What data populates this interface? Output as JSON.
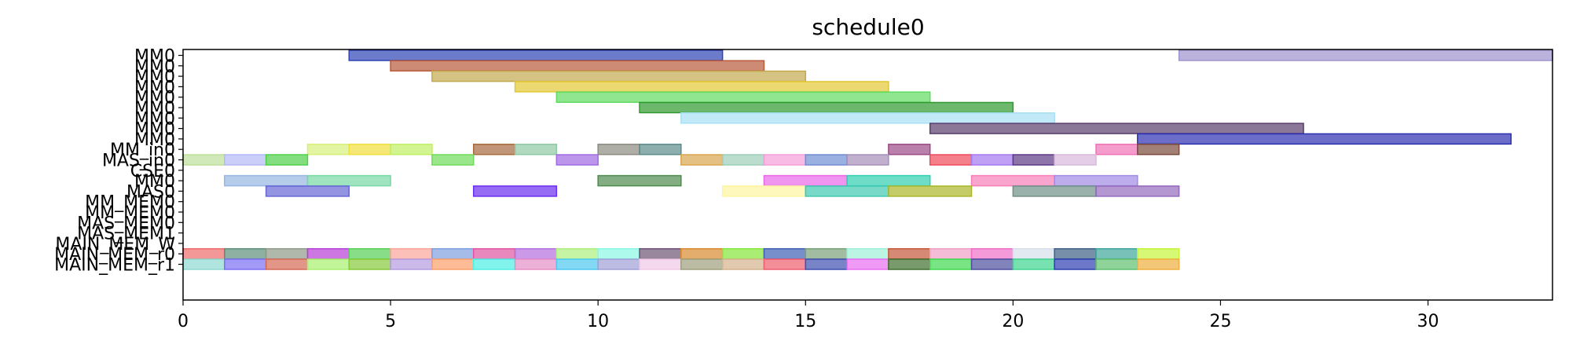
{
  "chart_data": {
    "type": "gantt",
    "title": "schedule0",
    "xlim": [
      0,
      33
    ],
    "xticks": [
      "0",
      "5",
      "10",
      "15",
      "20",
      "25",
      "30"
    ],
    "rows": [
      "MM0",
      "MM0",
      "MM0",
      "MM0",
      "MM0",
      "MM0",
      "MM0",
      "MM0",
      "MM0",
      "MM_in0",
      "MAS_in0",
      "CSE0",
      "MM0",
      "MAS0",
      "MM_MEM0",
      "MM_MEM0",
      "MAS_MEM0",
      "MAS_MEM1",
      "MAIN_MEM_W",
      "MAIN_MEM_r0",
      "MAIN_MEM_r1"
    ],
    "bars": [
      {
        "row": 0,
        "start": 4,
        "end": 13,
        "color": "#2f43b5"
      },
      {
        "row": 0,
        "start": 24,
        "end": 33,
        "color": "#9f93cf"
      },
      {
        "row": 1,
        "start": 5,
        "end": 14,
        "color": "#b85a3a"
      },
      {
        "row": 2,
        "start": 6,
        "end": 15,
        "color": "#c2a94f"
      },
      {
        "row": 3,
        "start": 8,
        "end": 17,
        "color": "#e3c733"
      },
      {
        "row": 4,
        "start": 9,
        "end": 18,
        "color": "#5fdb5f"
      },
      {
        "row": 5,
        "start": 11,
        "end": 20,
        "color": "#2f9a2f"
      },
      {
        "row": 6,
        "start": 12,
        "end": 21,
        "color": "#a7dff5"
      },
      {
        "row": 7,
        "start": 18,
        "end": 27,
        "color": "#5a3f6e"
      },
      {
        "row": 8,
        "start": 23,
        "end": 32,
        "color": "#2c2fb0"
      },
      {
        "row": 9,
        "start": 3,
        "end": 4,
        "color": "#d7f07a"
      },
      {
        "row": 9,
        "start": 4,
        "end": 5,
        "color": "#f2de3c"
      },
      {
        "row": 9,
        "start": 5,
        "end": 6,
        "color": "#bff063"
      },
      {
        "row": 9,
        "start": 7,
        "end": 8,
        "color": "#a76a3f"
      },
      {
        "row": 9,
        "start": 8,
        "end": 9,
        "color": "#8fc9a4"
      },
      {
        "row": 9,
        "start": 10,
        "end": 11,
        "color": "#8b8b82"
      },
      {
        "row": 9,
        "start": 11,
        "end": 12,
        "color": "#5b8b8a"
      },
      {
        "row": 9,
        "start": 17,
        "end": 18,
        "color": "#9b4a88"
      },
      {
        "row": 9,
        "start": 22,
        "end": 23,
        "color": "#ef72b5"
      },
      {
        "row": 9,
        "start": 23,
        "end": 24,
        "color": "#7a4a3a"
      },
      {
        "row": 10,
        "start": 0,
        "end": 1,
        "color": "#bde09a"
      },
      {
        "row": 10,
        "start": 1,
        "end": 2,
        "color": "#b4b9f6"
      },
      {
        "row": 10,
        "start": 2,
        "end": 3,
        "color": "#4fd04a"
      },
      {
        "row": 10,
        "start": 6,
        "end": 7,
        "color": "#6fdc5a"
      },
      {
        "row": 10,
        "start": 9,
        "end": 10,
        "color": "#a06ae2"
      },
      {
        "row": 10,
        "start": 12,
        "end": 13,
        "color": "#d9a64d"
      },
      {
        "row": 10,
        "start": 13,
        "end": 14,
        "color": "#9ccfb8"
      },
      {
        "row": 10,
        "start": 14,
        "end": 15,
        "color": "#f59fd9"
      },
      {
        "row": 10,
        "start": 15,
        "end": 16,
        "color": "#6f8ed4"
      },
      {
        "row": 10,
        "start": 16,
        "end": 17,
        "color": "#a68fb8"
      },
      {
        "row": 10,
        "start": 18,
        "end": 19,
        "color": "#ef4a5a"
      },
      {
        "row": 10,
        "start": 19,
        "end": 20,
        "color": "#a478f0"
      },
      {
        "row": 10,
        "start": 20,
        "end": 21,
        "color": "#5e3a85"
      },
      {
        "row": 10,
        "start": 21,
        "end": 22,
        "color": "#d9b8dc"
      },
      {
        "row": 12,
        "start": 1,
        "end": 3,
        "color": "#97b6e3"
      },
      {
        "row": 12,
        "start": 3,
        "end": 5,
        "color": "#77d9a4"
      },
      {
        "row": 12,
        "start": 10,
        "end": 12,
        "color": "#4f8a4f"
      },
      {
        "row": 12,
        "start": 14,
        "end": 16,
        "color": "#e867e8"
      },
      {
        "row": 12,
        "start": 16,
        "end": 18,
        "color": "#2fcfb0"
      },
      {
        "row": 12,
        "start": 19,
        "end": 21,
        "color": "#f77fb8"
      },
      {
        "row": 12,
        "start": 21,
        "end": 23,
        "color": "#a18ae6"
      },
      {
        "row": 13,
        "start": 2,
        "end": 4,
        "color": "#6767d6"
      },
      {
        "row": 13,
        "start": 7,
        "end": 9,
        "color": "#6a2ef0"
      },
      {
        "row": 13,
        "start": 13,
        "end": 15,
        "color": "#fff5a0"
      },
      {
        "row": 13,
        "start": 15,
        "end": 17,
        "color": "#3fc9b0"
      },
      {
        "row": 13,
        "start": 17,
        "end": 19,
        "color": "#a9b72a"
      },
      {
        "row": 13,
        "start": 20,
        "end": 22,
        "color": "#6f8f87"
      },
      {
        "row": 13,
        "start": 22,
        "end": 24,
        "color": "#9469be"
      },
      {
        "row": 19,
        "start": 0,
        "end": 1,
        "color": "#ef6b6b"
      },
      {
        "row": 19,
        "start": 1,
        "end": 2,
        "color": "#5d8f7a"
      },
      {
        "row": 19,
        "start": 2,
        "end": 3,
        "color": "#8f9a88"
      },
      {
        "row": 19,
        "start": 3,
        "end": 4,
        "color": "#b83fd6"
      },
      {
        "row": 19,
        "start": 4,
        "end": 5,
        "color": "#56d056"
      },
      {
        "row": 19,
        "start": 5,
        "end": 6,
        "color": "#fca59a"
      },
      {
        "row": 19,
        "start": 6,
        "end": 7,
        "color": "#7fa0e0"
      },
      {
        "row": 19,
        "start": 7,
        "end": 8,
        "color": "#e056a0"
      },
      {
        "row": 19,
        "start": 8,
        "end": 9,
        "color": "#b46fe0"
      },
      {
        "row": 19,
        "start": 9,
        "end": 10,
        "color": "#adf07f"
      },
      {
        "row": 19,
        "start": 10,
        "end": 11,
        "color": "#8af7e4"
      },
      {
        "row": 19,
        "start": 11,
        "end": 12,
        "color": "#6d5474"
      },
      {
        "row": 19,
        "start": 12,
        "end": 13,
        "color": "#d88a2f"
      },
      {
        "row": 19,
        "start": 13,
        "end": 14,
        "color": "#86e63a"
      },
      {
        "row": 19,
        "start": 14,
        "end": 15,
        "color": "#3d5fb3"
      },
      {
        "row": 19,
        "start": 15,
        "end": 16,
        "color": "#7aa07a"
      },
      {
        "row": 19,
        "start": 16,
        "end": 17,
        "color": "#9ff0d9"
      },
      {
        "row": 19,
        "start": 17,
        "end": 18,
        "color": "#c5573a"
      },
      {
        "row": 19,
        "start": 18,
        "end": 19,
        "color": "#ef9fc5"
      },
      {
        "row": 19,
        "start": 19,
        "end": 20,
        "color": "#ef6fc7"
      },
      {
        "row": 19,
        "start": 20,
        "end": 21,
        "color": "#d6dfe9"
      },
      {
        "row": 19,
        "start": 21,
        "end": 22,
        "color": "#3f5f86"
      },
      {
        "row": 19,
        "start": 22,
        "end": 23,
        "color": "#3fa79a"
      },
      {
        "row": 19,
        "start": 23,
        "end": 24,
        "color": "#c5f53a"
      },
      {
        "row": 20,
        "start": 0,
        "end": 1,
        "color": "#8fd9d0"
      },
      {
        "row": 20,
        "start": 1,
        "end": 2,
        "color": "#7c6ff5"
      },
      {
        "row": 20,
        "start": 2,
        "end": 3,
        "color": "#d46a56"
      },
      {
        "row": 20,
        "start": 3,
        "end": 4,
        "color": "#a8f06f"
      },
      {
        "row": 20,
        "start": 4,
        "end": 5,
        "color": "#86c93a"
      },
      {
        "row": 20,
        "start": 5,
        "end": 6,
        "color": "#b39be0"
      },
      {
        "row": 20,
        "start": 6,
        "end": 7,
        "color": "#fca06a"
      },
      {
        "row": 20,
        "start": 7,
        "end": 8,
        "color": "#4ff0e4"
      },
      {
        "row": 20,
        "start": 8,
        "end": 9,
        "color": "#e68fc5"
      },
      {
        "row": 20,
        "start": 9,
        "end": 10,
        "color": "#4fc9f0"
      },
      {
        "row": 20,
        "start": 10,
        "end": 11,
        "color": "#9f9fd6"
      },
      {
        "row": 20,
        "start": 11,
        "end": 12,
        "color": "#f0c8e6"
      },
      {
        "row": 20,
        "start": 12,
        "end": 13,
        "color": "#9f9f7f"
      },
      {
        "row": 20,
        "start": 13,
        "end": 14,
        "color": "#d4b48f"
      },
      {
        "row": 20,
        "start": 14,
        "end": 15,
        "color": "#ef5f6f"
      },
      {
        "row": 20,
        "start": 15,
        "end": 16,
        "color": "#3f4fb0"
      },
      {
        "row": 20,
        "start": 16,
        "end": 17,
        "color": "#e86ff0"
      },
      {
        "row": 20,
        "start": 17,
        "end": 18,
        "color": "#3f6f2f"
      },
      {
        "row": 20,
        "start": 18,
        "end": 19,
        "color": "#3fd84f"
      },
      {
        "row": 20,
        "start": 19,
        "end": 20,
        "color": "#4f4f9f"
      },
      {
        "row": 20,
        "start": 20,
        "end": 21,
        "color": "#3fd48f"
      },
      {
        "row": 20,
        "start": 21,
        "end": 22,
        "color": "#2f3fb0"
      },
      {
        "row": 20,
        "start": 22,
        "end": 23,
        "color": "#5fbf6f"
      },
      {
        "row": 20,
        "start": 23,
        "end": 24,
        "color": "#efaf3f"
      }
    ]
  }
}
